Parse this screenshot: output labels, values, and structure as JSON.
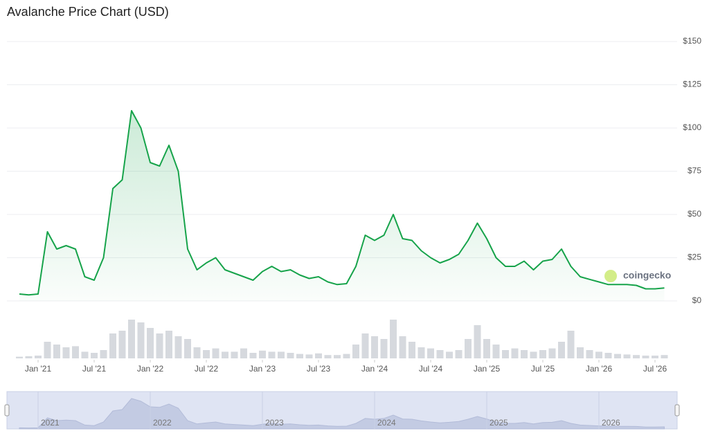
{
  "chart_data": {
    "type": "line",
    "title": "Avalanche Price Chart (USD)",
    "x": [
      "2020-11",
      "2020-12",
      "2021-01",
      "2021-02",
      "2021-03",
      "2021-04",
      "2021-05",
      "2021-06",
      "2021-07",
      "2021-08",
      "2021-09",
      "2021-10",
      "2021-11",
      "2021-12",
      "2022-01",
      "2022-02",
      "2022-03",
      "2022-04",
      "2022-05",
      "2022-06",
      "2022-07",
      "2022-08",
      "2022-09",
      "2022-10",
      "2022-11",
      "2022-12",
      "2023-01",
      "2023-02",
      "2023-03",
      "2023-04",
      "2023-05",
      "2023-06",
      "2023-07",
      "2023-08",
      "2023-09",
      "2023-10",
      "2023-11",
      "2023-12",
      "2024-01",
      "2024-02",
      "2024-03",
      "2024-04",
      "2024-05",
      "2024-06",
      "2024-07",
      "2024-08",
      "2024-09",
      "2024-10",
      "2024-11",
      "2024-12",
      "2025-01",
      "2025-02",
      "2025-03",
      "2025-04",
      "2025-05",
      "2025-06",
      "2025-07",
      "2025-08",
      "2025-09",
      "2025-10",
      "2025-11",
      "2025-12",
      "2026-01",
      "2026-02",
      "2026-03",
      "2026-04",
      "2026-05",
      "2026-06",
      "2026-07",
      "2026-08"
    ],
    "values": [
      4,
      3.5,
      4,
      40,
      30,
      32,
      30,
      14,
      12,
      25,
      65,
      70,
      110,
      100,
      80,
      78,
      90,
      75,
      30,
      18,
      22,
      25,
      18,
      16,
      14,
      12,
      17,
      20,
      17,
      18,
      15,
      13,
      14,
      11,
      9.5,
      10,
      20,
      38,
      35,
      38,
      50,
      36,
      35,
      29,
      25,
      22,
      24,
      27,
      35,
      45,
      36,
      25,
      20,
      20,
      23,
      18,
      23,
      24,
      30,
      20,
      14,
      12.5,
      11,
      9.5,
      9.5,
      9.5,
      9,
      7,
      7,
      7.5
    ],
    "color": "#16a34a",
    "volume": {
      "color": "#d6d9de",
      "values": [
        3,
        4,
        5,
        30,
        25,
        20,
        22,
        12,
        10,
        15,
        45,
        50,
        70,
        65,
        55,
        45,
        50,
        40,
        35,
        20,
        15,
        18,
        12,
        12,
        18,
        10,
        14,
        12,
        12,
        10,
        8,
        7,
        9,
        6,
        6,
        8,
        25,
        45,
        40,
        35,
        70,
        40,
        30,
        20,
        18,
        15,
        12,
        15,
        35,
        60,
        35,
        25,
        15,
        18,
        15,
        12,
        15,
        18,
        30,
        50,
        20,
        15,
        12,
        10,
        8,
        7,
        6,
        5,
        5,
        6
      ]
    },
    "ylim": [
      0,
      150
    ],
    "yticks": [
      {
        "value": 0,
        "label": "$0"
      },
      {
        "value": 25,
        "label": "$25"
      },
      {
        "value": 50,
        "label": "$50"
      },
      {
        "value": 75,
        "label": "$75"
      },
      {
        "value": 100,
        "label": "$100"
      },
      {
        "value": 125,
        "label": "$125"
      },
      {
        "value": 150,
        "label": "$150"
      }
    ],
    "xticks": [
      {
        "value": "2021-01",
        "label": "Jan '21"
      },
      {
        "value": "2021-07",
        "label": "Jul '21"
      },
      {
        "value": "2022-01",
        "label": "Jan '22"
      },
      {
        "value": "2022-07",
        "label": "Jul '22"
      },
      {
        "value": "2023-01",
        "label": "Jan '23"
      },
      {
        "value": "2023-07",
        "label": "Jul '23"
      },
      {
        "value": "2024-01",
        "label": "Jan '24"
      },
      {
        "value": "2024-07",
        "label": "Jul '24"
      },
      {
        "value": "2025-01",
        "label": "Jan '25"
      },
      {
        "value": "2025-07",
        "label": "Jul '25"
      },
      {
        "value": "2026-01",
        "label": "Jan '26"
      },
      {
        "value": "2026-07",
        "label": "Jul '26"
      }
    ],
    "navigator_ticks": [
      {
        "value": "2021-01",
        "label": "2021"
      },
      {
        "value": "2022-01",
        "label": "2022"
      },
      {
        "value": "2023-01",
        "label": "2023"
      },
      {
        "value": "2024-01",
        "label": "2024"
      },
      {
        "value": "2025-01",
        "label": "2025"
      },
      {
        "value": "2026-01",
        "label": "2026"
      }
    ],
    "grid": true,
    "watermark": "coingecko"
  }
}
